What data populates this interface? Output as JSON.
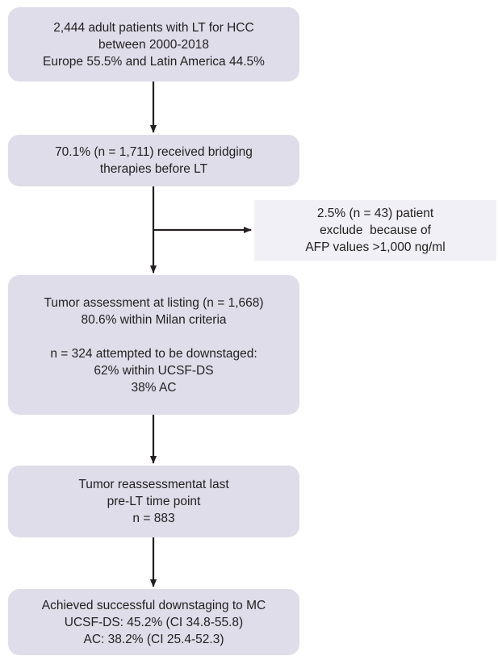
{
  "boxes": {
    "cohort": {
      "lines": [
        "2,444 adult patients with LT for HCC",
        "between 2000-2018",
        "Europe 55.5% and Latin America 44.5%"
      ]
    },
    "bridging": {
      "lines": [
        "70.1% (n = 1,711) received bridging",
        "therapies before LT"
      ]
    },
    "excluded": {
      "lines": [
        "2.5% (n = 43) patient",
        "exclude  because of",
        "AFP values >1,000 ng/ml"
      ]
    },
    "listing": {
      "lines": [
        "Tumor assessment at listing (n = 1,668)",
        "80.6% within Milan criteria",
        "",
        "n = 324 attempted to be downstaged:",
        "62% within UCSF-DS",
        "38% AC"
      ]
    },
    "reassessment": {
      "lines": [
        "Tumor reassessmentat last",
        "pre-LT time point",
        "n = 883"
      ]
    },
    "outcome": {
      "lines": [
        "Achieved successful downstaging to MC",
        "UCSF-DS: 45.2% (CI 34.8-55.8)",
        "AC: 38.2% (CI 25.4-52.3)"
      ]
    }
  },
  "colors": {
    "box_fill": "#dedde9",
    "side_box_fill": "#f0f0f6",
    "connector": "#231f20"
  }
}
